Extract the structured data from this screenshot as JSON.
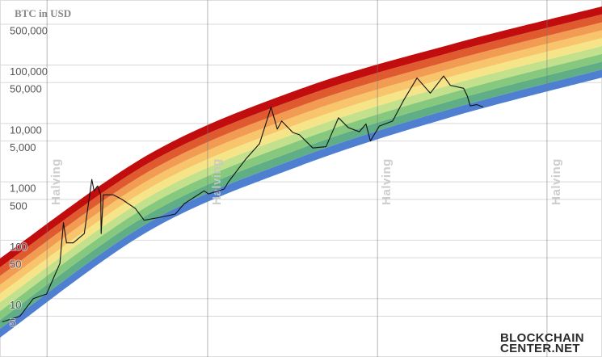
{
  "chart_data": {
    "type": "line",
    "title": "BTC in USD",
    "log_scale": true,
    "grid": true,
    "color": "#111111",
    "x": [
      2011.9,
      2012.3,
      2012.6,
      2012.9,
      2013.2,
      2013.28,
      2013.35,
      2013.5,
      2013.75,
      2013.92,
      2013.97,
      2014.05,
      2014.12,
      2014.13,
      2014.18,
      2014.4,
      2014.6,
      2014.9,
      2015.1,
      2015.5,
      2015.8,
      2016.0,
      2016.45,
      2016.55,
      2016.9,
      2017.0,
      2017.4,
      2017.7,
      2017.96,
      2018.1,
      2018.2,
      2018.45,
      2018.6,
      2018.9,
      2019.2,
      2019.48,
      2019.7,
      2019.95,
      2020.1,
      2020.2,
      2020.4,
      2020.7,
      2020.95,
      2021.25,
      2021.55,
      2021.85,
      2022.0,
      2022.3,
      2022.38,
      2022.45,
      2022.6,
      2022.74
    ],
    "values": [
      4,
      5,
      10,
      12,
      40,
      200,
      90,
      90,
      130,
      1100,
      700,
      850,
      600,
      130,
      600,
      600,
      500,
      350,
      220,
      250,
      280,
      420,
      700,
      620,
      750,
      1000,
      2500,
      4500,
      19000,
      8000,
      11000,
      7000,
      6400,
      3800,
      4000,
      12500,
      8500,
      7200,
      9800,
      5000,
      9000,
      11000,
      25000,
      60000,
      33000,
      65000,
      45000,
      40000,
      30000,
      20000,
      21000,
      19000
    ],
    "xlim": [
      2011.85,
      2025.42
    ],
    "ylim": [
      1,
      1300000
    ],
    "yticks": [
      5,
      10,
      50,
      100,
      500,
      {
        "value": 1000,
        "label": "1,000"
      },
      {
        "value": 5000,
        "label": "5,000"
      },
      {
        "value": 10000,
        "label": "10,000"
      },
      {
        "value": 50000,
        "label": "50,000"
      },
      {
        "value": 100000,
        "label": "100,000"
      },
      {
        "value": 500000,
        "label": "500,000"
      }
    ],
    "bands": {
      "x": [
        2011.85,
        2015.24,
        2018.63,
        2022.01,
        2025.42
      ],
      "colors": [
        "#4f7fd1",
        "#5fae85",
        "#86c97e",
        "#c3e08c",
        "#f6e588",
        "#f8c46c",
        "#f29b53",
        "#e05a30",
        "#c10d0d"
      ],
      "edges": [
        [
          2.15,
          149,
          1901,
          12800,
          61100
        ],
        [
          3.04,
          208,
          2661,
          17700,
          83600
        ],
        [
          4.3,
          291,
          3715,
          24300,
          114000
        ],
        [
          6.1,
          408,
          5212,
          33300,
          155000
        ],
        [
          8.63,
          570,
          7278,
          45900,
          212000
        ],
        [
          12.2,
          798,
          10200,
          63100,
          290000
        ],
        [
          17.2,
          1117,
          14260,
          86700,
          396000
        ],
        [
          24.4,
          1563,
          20000,
          119000,
          540000
        ],
        [
          34.4,
          2183,
          27900,
          164000,
          738000
        ],
        [
          48.8,
          3062,
          39200,
          225000,
          1007000
        ]
      ]
    },
    "annotations": [
      {
        "x": 2012.91,
        "label": "Halving"
      },
      {
        "x": 2016.53,
        "label": "Halving"
      },
      {
        "x": 2020.36,
        "label": "Halving"
      },
      {
        "x": 2024.18,
        "label": "Halving"
      }
    ]
  },
  "logo": {
    "line1": "BLOCKCHAIN",
    "line2": "CENTER.NET"
  }
}
